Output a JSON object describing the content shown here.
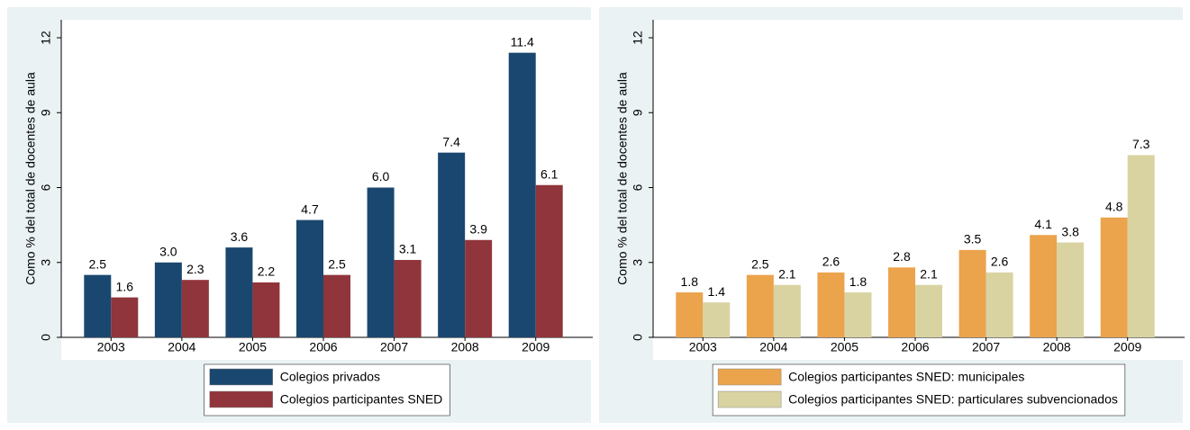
{
  "chart_data": [
    {
      "type": "bar",
      "y_axis_label": "Como % del total de docentes de aula",
      "categories": [
        "2003",
        "2004",
        "2005",
        "2006",
        "2007",
        "2008",
        "2009"
      ],
      "series": [
        {
          "name": "Colegios privados",
          "color": "#1a476f",
          "values": [
            2.5,
            3.0,
            3.6,
            4.7,
            6.0,
            7.4,
            11.4
          ],
          "value_labels": [
            "2.5",
            "3.0",
            "3.6",
            "4.7",
            "6.0",
            "7.4",
            "11.4"
          ]
        },
        {
          "name": "Colegios participantes SNED",
          "color": "#90353b",
          "values": [
            1.6,
            2.3,
            2.2,
            2.5,
            3.1,
            3.9,
            6.1
          ],
          "value_labels": [
            "1.6",
            "2.3",
            "2.2",
            "2.5",
            "3.1",
            "3.9",
            "6.1"
          ]
        }
      ],
      "ylim": [
        0,
        12
      ],
      "yticks": [
        0,
        3,
        6,
        9,
        12
      ]
    },
    {
      "type": "bar",
      "y_axis_label": "Como % del total de docentes de aula",
      "categories": [
        "2003",
        "2004",
        "2005",
        "2006",
        "2007",
        "2008",
        "2009"
      ],
      "series": [
        {
          "name": "Colegios participantes SNED: municipales",
          "color": "#eba34c",
          "values": [
            1.8,
            2.5,
            2.6,
            2.8,
            3.5,
            4.1,
            4.8
          ],
          "value_labels": [
            "1.8",
            "2.5",
            "2.6",
            "2.8",
            "3.5",
            "4.1",
            "4.8"
          ]
        },
        {
          "name": "Colegios participantes SNED: particulares subvencionados",
          "color": "#d9d3a2",
          "values": [
            1.4,
            2.1,
            1.8,
            2.1,
            2.6,
            3.8,
            7.3
          ],
          "value_labels": [
            "1.4",
            "2.1",
            "1.8",
            "2.1",
            "2.6",
            "3.8",
            "7.3"
          ]
        }
      ],
      "ylim": [
        0,
        12
      ],
      "yticks": [
        0,
        3,
        6,
        9,
        12
      ]
    }
  ]
}
